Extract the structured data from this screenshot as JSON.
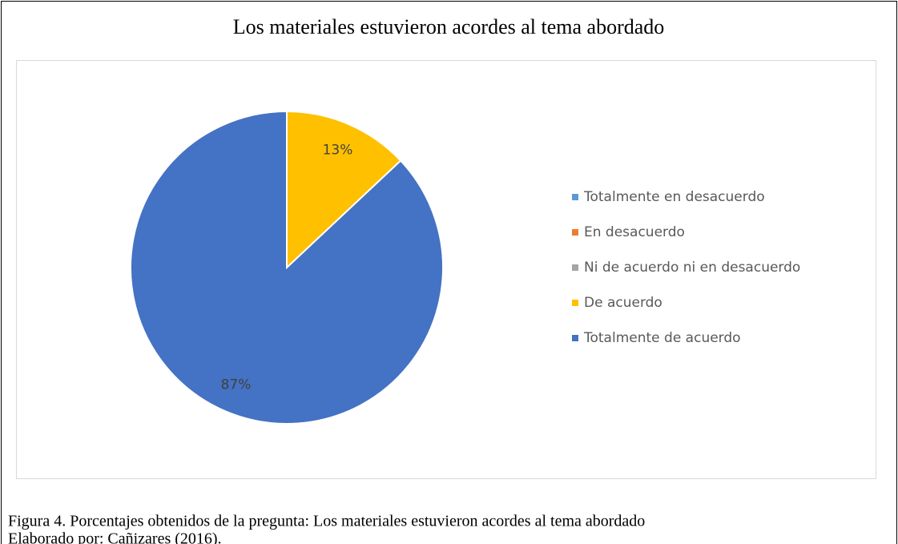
{
  "chart_data": {
    "type": "pie",
    "title": "Los materiales estuvieron acordes al tema abordado",
    "categories": [
      "Totalmente en desacuerdo",
      "En desacuerdo",
      "Ni de acuerdo ni en desacuerdo",
      "De acuerdo",
      "Totalmente de acuerdo"
    ],
    "values": [
      0,
      0,
      0,
      13,
      87
    ],
    "value_labels": [
      null,
      null,
      null,
      "13%",
      "87%"
    ],
    "colors": [
      "#5b9bd5",
      "#ed7d31",
      "#a5a5a5",
      "#ffc000",
      "#4472c4"
    ],
    "legend": "right"
  },
  "caption": [
    "Figura 4. Porcentajes obtenidos de la pregunta: Los materiales estuvieron acordes al tema abordado",
    "Elaborado por: Cañizares (2016)."
  ]
}
